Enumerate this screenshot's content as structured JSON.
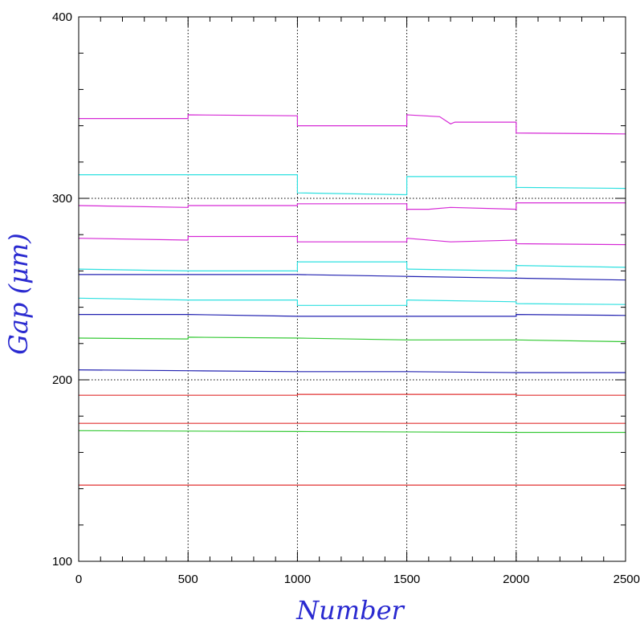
{
  "chart_data": {
    "type": "line",
    "xlabel": "Number",
    "ylabel_main": "Gap (",
    "ylabel_mu": "μ",
    "ylabel_end": "m)",
    "xlim": [
      0,
      2500
    ],
    "ylim": [
      100,
      400
    ],
    "x_ticks": [
      0,
      500,
      1000,
      1500,
      2000,
      2500
    ],
    "x_tick_labels": [
      "0",
      "500",
      "1000",
      "1500",
      "2000",
      "2500"
    ],
    "y_ticks": [
      100,
      200,
      300,
      400
    ],
    "y_tick_labels": [
      "100",
      "200",
      "300",
      "400"
    ],
    "x_minor_step": 100,
    "y_minor_step": 20,
    "grid": {
      "vertical_x": [
        500,
        1000,
        1500,
        2000
      ],
      "horizontal_y": [
        200,
        300
      ],
      "style": "dotted"
    },
    "colors": {
      "magenta": "#d62ad6",
      "cyan": "#2ee0e0",
      "blue": "#2020b0",
      "green": "#35c935",
      "red": "#e03030",
      "axis_title": "#2a2ad0"
    },
    "series": [
      {
        "color": "magenta",
        "points": [
          [
            0,
            344
          ],
          [
            500,
            344
          ],
          [
            500,
            346
          ],
          [
            1000,
            345.5
          ],
          [
            1000,
            340
          ],
          [
            1500,
            340
          ],
          [
            1500,
            346
          ],
          [
            1650,
            345
          ],
          [
            1700,
            341
          ],
          [
            1720,
            342
          ],
          [
            2000,
            342
          ],
          [
            2000,
            336
          ],
          [
            2500,
            335.5
          ]
        ]
      },
      {
        "color": "cyan",
        "points": [
          [
            0,
            313
          ],
          [
            1000,
            313
          ],
          [
            1000,
            303
          ],
          [
            1500,
            302
          ],
          [
            1500,
            312
          ],
          [
            2000,
            312
          ],
          [
            2000,
            306
          ],
          [
            2500,
            305.5
          ]
        ]
      },
      {
        "color": "magenta",
        "points": [
          [
            0,
            296
          ],
          [
            500,
            295
          ],
          [
            500,
            296
          ],
          [
            1000,
            296
          ],
          [
            1000,
            297
          ],
          [
            1500,
            297
          ],
          [
            1500,
            294
          ],
          [
            1600,
            294
          ],
          [
            1700,
            295
          ],
          [
            2000,
            294
          ],
          [
            2000,
            297.5
          ],
          [
            2500,
            297.5
          ]
        ]
      },
      {
        "color": "magenta",
        "points": [
          [
            0,
            278
          ],
          [
            500,
            277
          ],
          [
            500,
            279
          ],
          [
            1000,
            279
          ],
          [
            1000,
            276
          ],
          [
            1500,
            276
          ],
          [
            1500,
            278
          ],
          [
            1700,
            276
          ],
          [
            2000,
            277
          ],
          [
            2000,
            275
          ],
          [
            2500,
            274.5
          ]
        ]
      },
      {
        "color": "cyan",
        "points": [
          [
            0,
            261
          ],
          [
            500,
            260
          ],
          [
            1000,
            260
          ],
          [
            1000,
            265
          ],
          [
            1500,
            265
          ],
          [
            1500,
            261
          ],
          [
            2000,
            260
          ],
          [
            2000,
            263
          ],
          [
            2500,
            262
          ]
        ]
      },
      {
        "color": "blue",
        "points": [
          [
            0,
            258
          ],
          [
            1000,
            258
          ],
          [
            1500,
            257
          ],
          [
            2000,
            256
          ],
          [
            2500,
            255
          ]
        ]
      },
      {
        "color": "cyan",
        "points": [
          [
            0,
            245
          ],
          [
            500,
            244
          ],
          [
            1000,
            244
          ],
          [
            1000,
            241
          ],
          [
            1500,
            241
          ],
          [
            1500,
            244
          ],
          [
            2000,
            243
          ],
          [
            2000,
            242
          ],
          [
            2500,
            241.5
          ]
        ]
      },
      {
        "color": "blue",
        "points": [
          [
            0,
            236
          ],
          [
            500,
            236
          ],
          [
            1000,
            235
          ],
          [
            1500,
            235
          ],
          [
            2000,
            235
          ],
          [
            2000,
            236
          ],
          [
            2500,
            235.5
          ]
        ]
      },
      {
        "color": "green",
        "points": [
          [
            0,
            223
          ],
          [
            500,
            222.5
          ],
          [
            500,
            223.5
          ],
          [
            1000,
            223
          ],
          [
            1500,
            222
          ],
          [
            2000,
            222
          ],
          [
            2500,
            221
          ]
        ]
      },
      {
        "color": "blue",
        "points": [
          [
            0,
            205.5
          ],
          [
            500,
            205
          ],
          [
            1000,
            204.5
          ],
          [
            1500,
            204.5
          ],
          [
            2000,
            204
          ],
          [
            2500,
            204
          ]
        ]
      },
      {
        "color": "red",
        "points": [
          [
            0,
            191.5
          ],
          [
            1000,
            191.5
          ],
          [
            1000,
            192
          ],
          [
            2000,
            192
          ],
          [
            2000,
            191.5
          ],
          [
            2500,
            191.5
          ]
        ]
      },
      {
        "color": "red",
        "points": [
          [
            0,
            176
          ],
          [
            2500,
            176
          ]
        ]
      },
      {
        "color": "green",
        "points": [
          [
            0,
            172
          ],
          [
            1000,
            171.5
          ],
          [
            2000,
            171
          ],
          [
            2500,
            171
          ]
        ]
      },
      {
        "color": "red",
        "points": [
          [
            0,
            142
          ],
          [
            2500,
            142
          ]
        ]
      }
    ]
  }
}
